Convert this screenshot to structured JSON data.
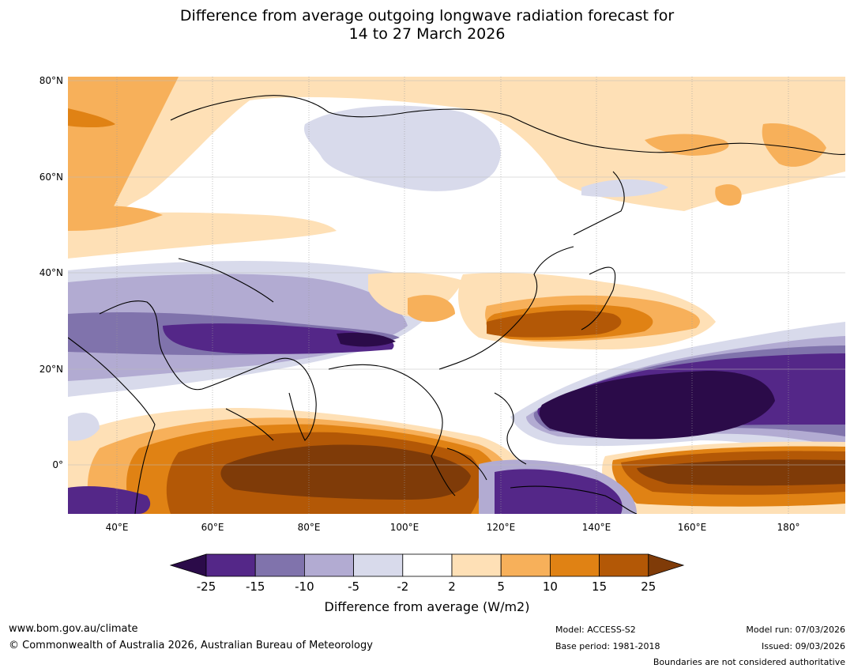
{
  "title": {
    "line1": "Difference from average outgoing longwave radiation forecast for",
    "line2": "14 to 27 March 2026"
  },
  "map": {
    "lat_labels": [
      "80°N",
      "60°N",
      "40°N",
      "20°N",
      "0°"
    ],
    "lon_labels": [
      "40°E",
      "60°E",
      "80°E",
      "100°E",
      "120°E",
      "140°E",
      "160°E",
      "180°"
    ]
  },
  "colorbar": {
    "ticks": [
      "-25",
      "-15",
      "-10",
      "-5",
      "-2",
      "2",
      "5",
      "10",
      "15",
      "25"
    ],
    "label": "Difference from average (W/m2)",
    "colors": {
      "lt_-25": "#2b0b49",
      "-25_-15": "#542788",
      "-15_-10": "#8073ac",
      "-10_-5": "#b2abd2",
      "-5_-2": "#d8daeb",
      "-2_2": "#ffffff",
      "2_5": "#fee0b6",
      "5_10": "#f7b05a",
      "10_15": "#e08214",
      "15_25": "#b35806",
      "gt_25": "#7f3b08"
    }
  },
  "footer": {
    "website": "www.bom.gov.au/climate",
    "copyright": "© Commonwealth of Australia 2026, Australian Bureau of Meteorology",
    "model": "Model: ACCESS-S2",
    "base_period": "Base period: 1981-2018",
    "model_run": "Model run: 07/03/2026",
    "issued": "Issued: 09/03/2026",
    "disclaimer": "Boundaries are not considered authoritative"
  }
}
